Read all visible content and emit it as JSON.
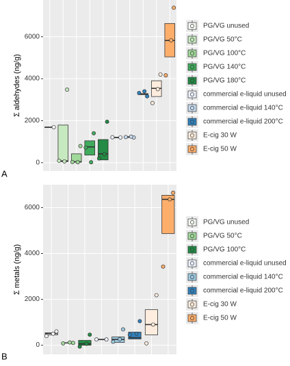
{
  "chart_data": [
    {
      "type": "box",
      "panel_label": "A",
      "ylabel": "Σ aldehydes  (ng/g)",
      "ylim": [
        -400,
        7750
      ],
      "yticks": [
        0,
        2000,
        4000,
        6000
      ],
      "series": [
        {
          "name": "PG/VG unused",
          "color": "#f7fcf5",
          "lower": 1690,
          "middle": 1690,
          "upper": 1690,
          "points": [
            1690
          ]
        },
        {
          "name": "PG/VG 50°C",
          "color": "#c7e9c0",
          "lower": 50,
          "middle": 80,
          "upper": 1790,
          "points": [
            3480,
            90,
            60
          ]
        },
        {
          "name": "PG/VG 100°C",
          "color": "#a1d99b",
          "lower": 20,
          "middle": 40,
          "upper": 420,
          "points": [
            790,
            30,
            20
          ]
        },
        {
          "name": "PG/VG 140°C",
          "color": "#41ab5d",
          "lower": 360,
          "middle": 750,
          "upper": 1040,
          "points": [
            1400,
            720,
            20
          ]
        },
        {
          "name": "PG/VG 180°C",
          "color": "#238b45",
          "lower": 130,
          "middle": 420,
          "upper": 1100,
          "points": [
            1950,
            200,
            400
          ]
        },
        {
          "name": "commercial e-liquid unused",
          "color": "#eff3ff",
          "lower": 1200,
          "middle": 1200,
          "upper": 1200,
          "points": [
            1200,
            1210
          ]
        },
        {
          "name": "commercial e-liquid 140°C",
          "color": "#c6dbef",
          "lower": 1200,
          "middle": 1220,
          "upper": 1240,
          "points": [
            1200,
            1220,
            1240
          ]
        },
        {
          "name": "commercial e-liquid 200°C",
          "color": "#3182bd",
          "lower": 3240,
          "middle": 3260,
          "upper": 3290,
          "points": [
            3160,
            3320,
            3400
          ]
        },
        {
          "name": "E-cig 30 W",
          "color": "#feedde",
          "lower": 3150,
          "middle": 3540,
          "upper": 3900,
          "points": [
            4200,
            2840,
            3500
          ]
        },
        {
          "name": "E-cig 50 W",
          "color": "#fdae6b",
          "lower": 5040,
          "middle": 5820,
          "upper": 6630,
          "points": [
            7380,
            4160,
            5830
          ]
        }
      ]
    },
    {
      "type": "box",
      "panel_label": "B",
      "ylabel": "Σ metals  (ng/g)",
      "ylim": [
        -400,
        7000
      ],
      "yticks": [
        0,
        2000,
        4000,
        6000
      ],
      "series": [
        {
          "name": "PG/VG unused",
          "color": "#f7fcf5",
          "lower": 450,
          "middle": 510,
          "upper": 540,
          "points": [
            600,
            400,
            500
          ]
        },
        {
          "name": "PG/VG 50°C",
          "color": "#a1d99b",
          "lower": 90,
          "middle": 100,
          "upper": 110,
          "points": [
            100,
            80,
            120
          ]
        },
        {
          "name": "PG/VG 100°C",
          "color": "#238b45",
          "lower": 0,
          "middle": 60,
          "upper": 210,
          "points": [
            460,
            -60,
            60
          ]
        },
        {
          "name": "commercial e-liquid unused",
          "color": "#eff3ff",
          "lower": 250,
          "middle": 250,
          "upper": 250,
          "points": [
            250,
            250
          ]
        },
        {
          "name": "commercial e-liquid 140°C",
          "color": "#9ecae1",
          "lower": 120,
          "middle": 250,
          "upper": 360,
          "points": [
            690,
            150,
            260
          ]
        },
        {
          "name": "commercial e-liquid 200°C",
          "color": "#3182bd",
          "lower": 270,
          "middle": 330,
          "upper": 570,
          "points": [
            1050,
            450,
            500
          ]
        },
        {
          "name": "E-cig 30 W",
          "color": "#feedde",
          "lower": 450,
          "middle": 900,
          "upper": 1550,
          "points": [
            2180,
            80,
            900
          ]
        },
        {
          "name": "E-cig 50 W",
          "color": "#fdae6b",
          "lower": 4870,
          "middle": 6360,
          "upper": 6540,
          "points": [
            6650,
            3430,
            6360
          ]
        }
      ]
    }
  ]
}
